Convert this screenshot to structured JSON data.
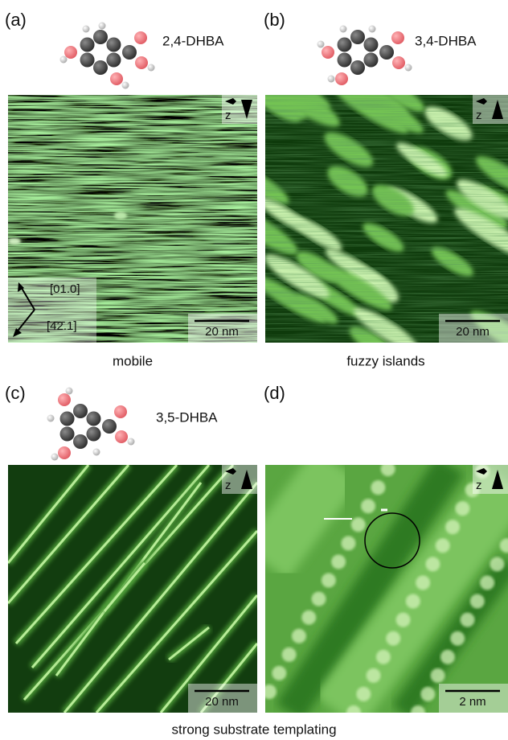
{
  "panels": [
    {
      "label": "(a)",
      "molecule": "2,4-DHBA",
      "caption": "mobile",
      "scale_bar": "20 nm",
      "z_label": "z",
      "directions": [
        "[01.0]",
        "[4̄2̄.1]"
      ]
    },
    {
      "label": "(b)",
      "molecule": "3,4-DHBA",
      "caption": "fuzzy islands",
      "scale_bar": "20 nm",
      "z_label": "z"
    },
    {
      "label": "(c)",
      "molecule": "3,5-DHBA",
      "scale_bar": "20 nm",
      "z_label": "z"
    },
    {
      "label": "(d)",
      "scale_bar": "2 nm",
      "z_label": "z"
    }
  ],
  "shared_caption": "strong substrate templating"
}
